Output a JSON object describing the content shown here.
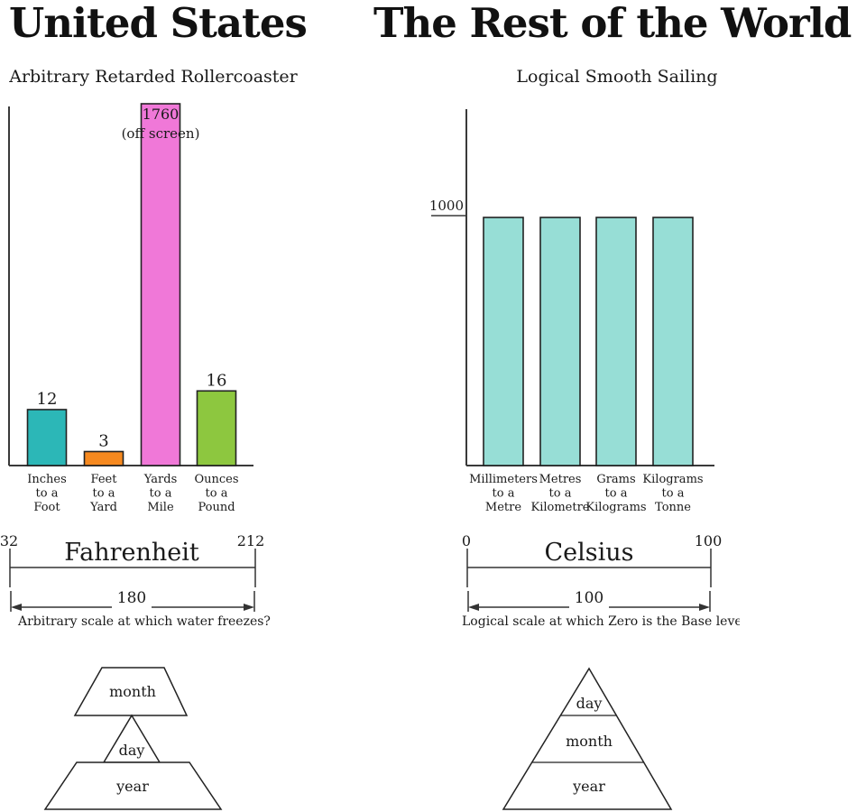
{
  "header": {
    "left_title": "United States",
    "right_title": "The Rest of the World"
  },
  "chart_data": [
    {
      "type": "bar",
      "title": "Arbitrary Retarded Rollercoaster",
      "categories": [
        [
          "Inches",
          "to a",
          "Foot"
        ],
        [
          "Feet",
          "to a",
          "Yard"
        ],
        [
          "Yards",
          "to a",
          "Mile"
        ],
        [
          "Ounces",
          "to a",
          "Pound"
        ]
      ],
      "values": [
        12,
        3,
        1760,
        16
      ],
      "bar_value_labels": [
        "12",
        "3",
        "1760",
        "16"
      ],
      "offscreen_index": 2,
      "offscreen_note": "(off screen)",
      "bar_colors": [
        "#2cb7b7",
        "#f6891f",
        "#f078d8",
        "#8dc73f"
      ],
      "ylim_visible": [
        0,
        77
      ],
      "yaxis_ticks": [],
      "grid": false,
      "legend": false
    },
    {
      "type": "bar",
      "title": "Logical Smooth Sailing",
      "categories": [
        [
          "Millimeters",
          "to a",
          "Metre"
        ],
        [
          "Metres",
          "to a",
          "Kilometre"
        ],
        [
          "Grams",
          "to a",
          "Kilograms"
        ],
        [
          "Kilograms",
          "to a",
          "Tonne"
        ]
      ],
      "values": [
        1000,
        1000,
        1000,
        1000
      ],
      "bar_value_labels": [
        "",
        "",
        "",
        ""
      ],
      "bar_colors": [
        "#97ded6",
        "#97ded6",
        "#97ded6",
        "#97ded6"
      ],
      "ylim_visible": [
        0,
        1075
      ],
      "yaxis_ticks": [
        {
          "label": "1000",
          "value": 1000
        }
      ],
      "grid": false,
      "legend": false
    }
  ],
  "scales": {
    "fahrenheit": {
      "name": "Fahrenheit",
      "min": "32",
      "max": "212",
      "span": "180",
      "caption": "Arbitrary scale at which water freezes?"
    },
    "celsius": {
      "name": "Celsius",
      "min": "0",
      "max": "100",
      "span": "100",
      "caption": "Logical scale at which Zero is the Base level"
    }
  },
  "pyramids": {
    "us_date_order": {
      "layers": [
        "month",
        "day",
        "year"
      ]
    },
    "world_date_order": {
      "layers": [
        "day",
        "month",
        "year"
      ]
    }
  }
}
